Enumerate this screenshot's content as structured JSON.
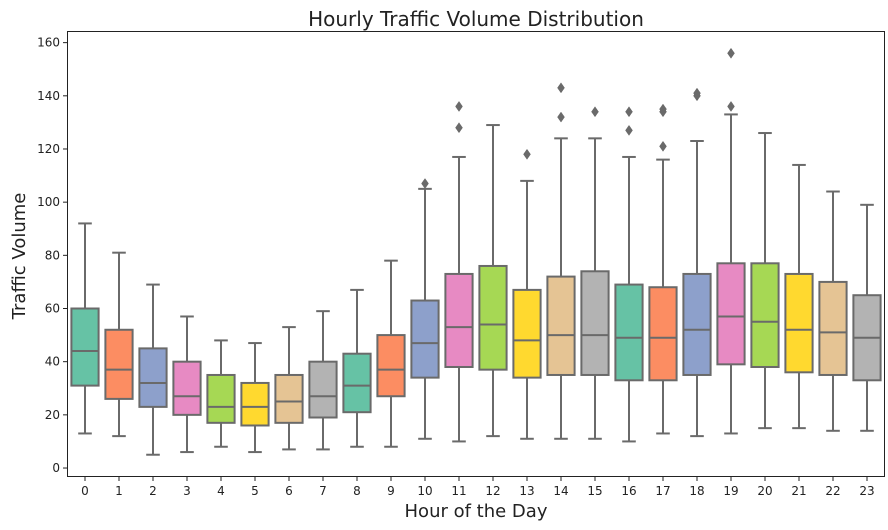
{
  "chart_data": {
    "type": "box",
    "title": "Hourly Traffic Volume Distribution",
    "xlabel": "Hour of the Day",
    "ylabel": "Traffic Volume",
    "ylim": [
      -3,
      164
    ],
    "yticks": [
      0,
      20,
      40,
      60,
      80,
      100,
      120,
      140,
      160
    ],
    "grid": false,
    "categories": [
      "0",
      "1",
      "2",
      "3",
      "4",
      "5",
      "6",
      "7",
      "8",
      "9",
      "10",
      "11",
      "12",
      "13",
      "14",
      "15",
      "16",
      "17",
      "18",
      "19",
      "20",
      "21",
      "22",
      "23"
    ],
    "boxes": [
      {
        "whislo": 13,
        "q1": 31,
        "med": 44,
        "q3": 60,
        "whishi": 92,
        "fliers": []
      },
      {
        "whislo": 12,
        "q1": 26,
        "med": 37,
        "q3": 52,
        "whishi": 81,
        "fliers": []
      },
      {
        "whislo": 5,
        "q1": 23,
        "med": 32,
        "q3": 45,
        "whishi": 69,
        "fliers": []
      },
      {
        "whislo": 6,
        "q1": 20,
        "med": 27,
        "q3": 40,
        "whishi": 57,
        "fliers": []
      },
      {
        "whislo": 8,
        "q1": 17,
        "med": 23,
        "q3": 35,
        "whishi": 48,
        "fliers": []
      },
      {
        "whislo": 6,
        "q1": 16,
        "med": 23,
        "q3": 32,
        "whishi": 47,
        "fliers": []
      },
      {
        "whislo": 7,
        "q1": 17,
        "med": 25,
        "q3": 35,
        "whishi": 53,
        "fliers": []
      },
      {
        "whislo": 7,
        "q1": 19,
        "med": 27,
        "q3": 40,
        "whishi": 59,
        "fliers": []
      },
      {
        "whislo": 8,
        "q1": 21,
        "med": 31,
        "q3": 43,
        "whishi": 67,
        "fliers": []
      },
      {
        "whislo": 8,
        "q1": 27,
        "med": 37,
        "q3": 50,
        "whishi": 78,
        "fliers": []
      },
      {
        "whislo": 11,
        "q1": 34,
        "med": 47,
        "q3": 63,
        "whishi": 105,
        "fliers": [
          107
        ]
      },
      {
        "whislo": 10,
        "q1": 38,
        "med": 53,
        "q3": 73,
        "whishi": 117,
        "fliers": [
          128,
          136
        ]
      },
      {
        "whislo": 12,
        "q1": 37,
        "med": 54,
        "q3": 76,
        "whishi": 129,
        "fliers": []
      },
      {
        "whislo": 11,
        "q1": 34,
        "med": 48,
        "q3": 67,
        "whishi": 108,
        "fliers": [
          118
        ]
      },
      {
        "whislo": 11,
        "q1": 35,
        "med": 50,
        "q3": 72,
        "whishi": 124,
        "fliers": [
          132,
          143
        ]
      },
      {
        "whislo": 11,
        "q1": 35,
        "med": 50,
        "q3": 74,
        "whishi": 124,
        "fliers": [
          134
        ]
      },
      {
        "whislo": 10,
        "q1": 33,
        "med": 49,
        "q3": 69,
        "whishi": 117,
        "fliers": [
          127,
          134
        ]
      },
      {
        "whislo": 13,
        "q1": 33,
        "med": 49,
        "q3": 68,
        "whishi": 116,
        "fliers": [
          121,
          134,
          135
        ]
      },
      {
        "whislo": 12,
        "q1": 35,
        "med": 52,
        "q3": 73,
        "whishi": 123,
        "fliers": [
          140,
          141
        ]
      },
      {
        "whislo": 13,
        "q1": 39,
        "med": 57,
        "q3": 77,
        "whishi": 133,
        "fliers": [
          136,
          156
        ]
      },
      {
        "whislo": 15,
        "q1": 38,
        "med": 55,
        "q3": 77,
        "whishi": 126,
        "fliers": []
      },
      {
        "whislo": 15,
        "q1": 36,
        "med": 52,
        "q3": 73,
        "whishi": 114,
        "fliers": []
      },
      {
        "whislo": 14,
        "q1": 35,
        "med": 51,
        "q3": 70,
        "whishi": 104,
        "fliers": []
      },
      {
        "whislo": 14,
        "q1": 33,
        "med": 49,
        "q3": 65,
        "whishi": 99,
        "fliers": []
      }
    ],
    "palette": [
      "#66c2a5",
      "#fc8d62",
      "#8da0cb",
      "#e78ac3",
      "#a6d854",
      "#ffd92f",
      "#e5c494",
      "#b3b3b3"
    ],
    "line_color": "#6a6a6a"
  }
}
